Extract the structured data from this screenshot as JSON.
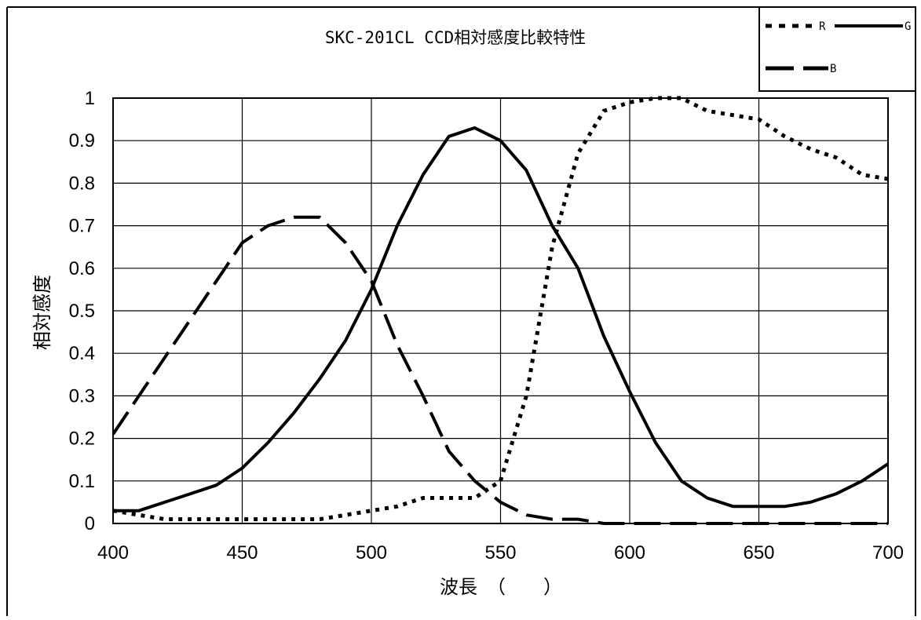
{
  "chart_data": {
    "type": "line",
    "title": "SKC-201CL CCD相対感度比較特性",
    "xlabel": "波長　（　　）",
    "ylabel": "相対感度",
    "xlim": [
      400,
      700
    ],
    "ylim": [
      0,
      1
    ],
    "x_ticks": [
      "400",
      "450",
      "500",
      "550",
      "600",
      "650",
      "700"
    ],
    "y_ticks": [
      "0",
      "0.1",
      "0.2",
      "0.3",
      "0.4",
      "0.5",
      "0.6",
      "0.7",
      "0.8",
      "0.9",
      "1"
    ],
    "grid": true,
    "legend_position": "top-right",
    "series": [
      {
        "name": "R",
        "style": "dotted",
        "points": [
          [
            400,
            0.03
          ],
          [
            410,
            0.02
          ],
          [
            420,
            0.01
          ],
          [
            430,
            0.01
          ],
          [
            440,
            0.01
          ],
          [
            450,
            0.01
          ],
          [
            460,
            0.01
          ],
          [
            470,
            0.01
          ],
          [
            480,
            0.01
          ],
          [
            490,
            0.02
          ],
          [
            500,
            0.03
          ],
          [
            510,
            0.04
          ],
          [
            520,
            0.06
          ],
          [
            530,
            0.06
          ],
          [
            540,
            0.06
          ],
          [
            550,
            0.1
          ],
          [
            560,
            0.3
          ],
          [
            570,
            0.65
          ],
          [
            580,
            0.87
          ],
          [
            590,
            0.97
          ],
          [
            600,
            0.99
          ],
          [
            610,
            1.0
          ],
          [
            620,
            1.0
          ],
          [
            630,
            0.97
          ],
          [
            640,
            0.96
          ],
          [
            650,
            0.95
          ],
          [
            660,
            0.91
          ],
          [
            670,
            0.88
          ],
          [
            680,
            0.86
          ],
          [
            690,
            0.82
          ],
          [
            700,
            0.81
          ]
        ]
      },
      {
        "name": "G",
        "style": "solid",
        "points": [
          [
            400,
            0.03
          ],
          [
            410,
            0.03
          ],
          [
            420,
            0.05
          ],
          [
            430,
            0.07
          ],
          [
            440,
            0.09
          ],
          [
            450,
            0.13
          ],
          [
            460,
            0.19
          ],
          [
            470,
            0.26
          ],
          [
            480,
            0.34
          ],
          [
            490,
            0.43
          ],
          [
            500,
            0.55
          ],
          [
            510,
            0.7
          ],
          [
            520,
            0.82
          ],
          [
            530,
            0.91
          ],
          [
            540,
            0.93
          ],
          [
            550,
            0.9
          ],
          [
            560,
            0.83
          ],
          [
            570,
            0.7
          ],
          [
            580,
            0.6
          ],
          [
            590,
            0.44
          ],
          [
            600,
            0.31
          ],
          [
            610,
            0.19
          ],
          [
            620,
            0.1
          ],
          [
            630,
            0.06
          ],
          [
            640,
            0.04
          ],
          [
            650,
            0.04
          ],
          [
            660,
            0.04
          ],
          [
            670,
            0.05
          ],
          [
            680,
            0.07
          ],
          [
            690,
            0.1
          ],
          [
            700,
            0.14
          ]
        ]
      },
      {
        "name": "B",
        "style": "dashed",
        "points": [
          [
            400,
            0.21
          ],
          [
            410,
            0.3
          ],
          [
            420,
            0.39
          ],
          [
            430,
            0.48
          ],
          [
            440,
            0.57
          ],
          [
            450,
            0.66
          ],
          [
            460,
            0.7
          ],
          [
            470,
            0.72
          ],
          [
            480,
            0.72
          ],
          [
            490,
            0.66
          ],
          [
            500,
            0.57
          ],
          [
            510,
            0.42
          ],
          [
            520,
            0.3
          ],
          [
            530,
            0.17
          ],
          [
            540,
            0.1
          ],
          [
            550,
            0.05
          ],
          [
            560,
            0.02
          ],
          [
            570,
            0.01
          ],
          [
            580,
            0.01
          ],
          [
            590,
            0.0
          ],
          [
            600,
            0.0
          ],
          [
            610,
            0.0
          ],
          [
            620,
            0.0
          ],
          [
            630,
            0.0
          ],
          [
            640,
            0.0
          ],
          [
            650,
            0.0
          ],
          [
            660,
            0.0
          ],
          [
            670,
            0.0
          ],
          [
            680,
            0.0
          ],
          [
            690,
            0.0
          ],
          [
            700,
            0.0
          ]
        ]
      }
    ]
  },
  "colors": {
    "background": "#ffffff",
    "lines": "#000000",
    "grid": "#000000"
  }
}
